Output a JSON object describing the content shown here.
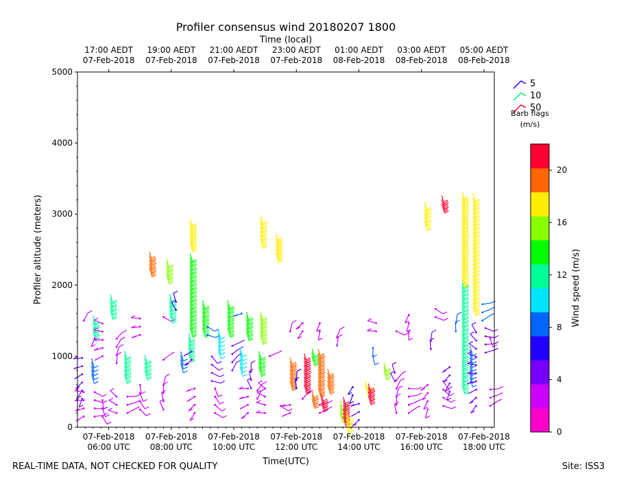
{
  "chart_data": {
    "type": "wind-barb-profile",
    "title": "Profiler consensus wind 20180207 1800",
    "top_axis_label": "Time (local)",
    "xlabel": "Time(UTC)",
    "ylabel": "Profiler altitude (meters)",
    "x_range_hours_utc": [
      5.0,
      18.33
    ],
    "ylim": [
      0,
      5000
    ],
    "y_ticks": [
      0,
      1000,
      2000,
      3000,
      4000,
      5000
    ],
    "x_ticks_utc": [
      {
        "hour": 6,
        "line1": "07-Feb-2018",
        "line2": "06:00 UTC"
      },
      {
        "hour": 8,
        "line1": "07-Feb-2018",
        "line2": "08:00 UTC"
      },
      {
        "hour": 10,
        "line1": "07-Feb-2018",
        "line2": "10:00 UTC"
      },
      {
        "hour": 12,
        "line1": "07-Feb-2018",
        "line2": "12:00 UTC"
      },
      {
        "hour": 14,
        "line1": "07-Feb-2018",
        "line2": "14:00 UTC"
      },
      {
        "hour": 16,
        "line1": "07-Feb-2018",
        "line2": "16:00 UTC"
      },
      {
        "hour": 18,
        "line1": "07-Feb-2018",
        "line2": "18:00 UTC"
      }
    ],
    "x_ticks_local": [
      {
        "hour": 6,
        "line1": "17:00 AEDT",
        "line2": "07-Feb-2018"
      },
      {
        "hour": 8,
        "line1": "19:00 AEDT",
        "line2": "07-Feb-2018"
      },
      {
        "hour": 10,
        "line1": "21:00 AEDT",
        "line2": "07-Feb-2018"
      },
      {
        "hour": 12,
        "line1": "23:00 AEDT",
        "line2": "07-Feb-2018"
      },
      {
        "hour": 14,
        "line1": "01:00 AEDT",
        "line2": "08-Feb-2018"
      },
      {
        "hour": 16,
        "line1": "03:00 AEDT",
        "line2": "08-Feb-2018"
      },
      {
        "hour": 18,
        "line1": "05:00 AEDT",
        "line2": "08-Feb-2018"
      }
    ],
    "barb_legend": {
      "title_line1": "Barb flags",
      "title_line2": "(m/s)",
      "entries": [
        {
          "label": "5",
          "color": "#2200ff"
        },
        {
          "label": "10",
          "color": "#00ee77"
        },
        {
          "label": "50",
          "color": "#ff0033"
        }
      ]
    },
    "colorbar": {
      "label": "Wind speed (m/s)",
      "range": [
        0,
        22
      ],
      "ticks": [
        0,
        4,
        8,
        12,
        16,
        20
      ],
      "colors": [
        "#ff00cc",
        "#cc00ff",
        "#7700ff",
        "#2200ff",
        "#0066ff",
        "#00e5ff",
        "#00ff99",
        "#00ff00",
        "#88ff00",
        "#ffee00",
        "#ff6600",
        "#ff0033"
      ]
    },
    "columns": [
      {
        "t": 5.05,
        "speed": 6,
        "levels": [
          [
            1100,
            1000
          ]
        ]
      },
      {
        "t": 5.15,
        "speed": 5,
        "levels": [
          [
            400,
            1050
          ]
        ]
      },
      {
        "t": 5.2,
        "speed": 2,
        "levels": [
          [
            150,
            600
          ],
          [
            1500,
            1550
          ]
        ]
      },
      {
        "t": 5.45,
        "speed": 9,
        "levels": [
          [
            750,
            1000
          ]
        ]
      },
      {
        "t": 5.5,
        "speed": 12,
        "levels": [
          [
            1350,
            1600
          ]
        ]
      },
      {
        "t": 5.55,
        "speed": 2,
        "levels": [
          [
            150,
            550
          ],
          [
            1250,
            1300
          ]
        ]
      },
      {
        "t": 5.8,
        "speed": 2,
        "levels": [
          [
            150,
            400
          ],
          [
            1000,
            1550
          ]
        ]
      },
      {
        "t": 6.05,
        "speed": 12,
        "levels": [
          [
            1650,
            1900
          ]
        ]
      },
      {
        "t": 6.25,
        "speed": 2,
        "levels": [
          [
            200,
            500
          ],
          [
            900,
            1300
          ]
        ]
      },
      {
        "t": 6.5,
        "speed": 11,
        "levels": [
          [
            750,
            1100
          ]
        ]
      },
      {
        "t": 6.6,
        "speed": 2,
        "levels": [
          [
            200,
            450
          ]
        ]
      },
      {
        "t": 7.0,
        "speed": 2,
        "levels": [
          [
            250,
            700
          ],
          [
            1300,
            1600
          ]
        ]
      },
      {
        "t": 7.15,
        "speed": 11,
        "levels": [
          [
            800,
            1050
          ]
        ]
      },
      {
        "t": 7.3,
        "speed": 19,
        "levels": [
          [
            2250,
            2500
          ]
        ]
      },
      {
        "t": 7.75,
        "speed": 2,
        "levels": [
          [
            250,
            700
          ],
          [
            950,
            1050
          ],
          [
            1550,
            1600
          ]
        ]
      },
      {
        "t": 7.85,
        "speed": 16,
        "levels": [
          [
            2150,
            2400
          ]
        ]
      },
      {
        "t": 7.95,
        "speed": 11,
        "levels": [
          [
            1600,
            1900
          ]
        ]
      },
      {
        "t": 8.15,
        "speed": 7,
        "levels": [
          [
            1650,
            1800
          ]
        ]
      },
      {
        "t": 8.3,
        "speed": 9,
        "levels": [
          [
            900,
            1100
          ]
        ]
      },
      {
        "t": 8.55,
        "speed": 11,
        "levels": [
          [
            1050,
            1350
          ]
        ]
      },
      {
        "t": 8.6,
        "speed": 18,
        "levels": [
          [
            2600,
            2950
          ]
        ]
      },
      {
        "t": 8.6,
        "speed": 14,
        "levels": [
          [
            1400,
            2450
          ]
        ]
      },
      {
        "t": 8.65,
        "speed": 4,
        "levels": [
          [
            950,
            1100
          ]
        ]
      },
      {
        "t": 8.75,
        "speed": 2,
        "levels": [
          [
            200,
            650
          ]
        ]
      },
      {
        "t": 9.0,
        "speed": 13,
        "levels": [
          [
            1400,
            1800
          ]
        ]
      },
      {
        "t": 9.15,
        "speed": 8,
        "levels": [
          [
            1300,
            1450
          ]
        ]
      },
      {
        "t": 9.3,
        "speed": 5,
        "levels": [
          [
            650,
            1100
          ]
        ]
      },
      {
        "t": 9.4,
        "speed": 3,
        "levels": [
          [
            200,
            550
          ]
        ]
      },
      {
        "t": 9.5,
        "speed": 10,
        "levels": [
          [
            1100,
            1400
          ]
        ]
      },
      {
        "t": 9.8,
        "speed": 13,
        "levels": [
          [
            1400,
            1800
          ]
        ]
      },
      {
        "t": 9.95,
        "speed": 4,
        "levels": [
          [
            800,
            1150
          ]
        ]
      },
      {
        "t": 10.2,
        "speed": 10,
        "levels": [
          [
            850,
            1150
          ]
        ]
      },
      {
        "t": 10.25,
        "speed": 8,
        "levels": [
          [
            1600,
            1700
          ]
        ]
      },
      {
        "t": 10.4,
        "speed": 13,
        "levels": [
          [
            1350,
            1650
          ]
        ]
      },
      {
        "t": 10.45,
        "speed": 2,
        "levels": [
          [
            200,
            650
          ]
        ]
      },
      {
        "t": 10.55,
        "speed": 5,
        "levels": [
          [
            550,
            800
          ]
        ]
      },
      {
        "t": 10.75,
        "speed": 3,
        "levels": [
          [
            400,
            550
          ]
        ]
      },
      {
        "t": 10.8,
        "speed": 14,
        "levels": [
          [
            850,
            1100
          ]
        ]
      },
      {
        "t": 10.85,
        "speed": 15,
        "levels": [
          [
            1300,
            1650
          ]
        ]
      },
      {
        "t": 10.85,
        "speed": 17,
        "levels": [
          [
            2650,
            3000
          ]
        ]
      },
      {
        "t": 11.0,
        "speed": 2,
        "levels": [
          [
            200,
            600
          ]
        ]
      },
      {
        "t": 11.15,
        "speed": 3,
        "levels": [
          [
            1000,
            1050
          ]
        ]
      },
      {
        "t": 11.35,
        "speed": 18,
        "levels": [
          [
            2450,
            2750
          ]
        ]
      },
      {
        "t": 11.5,
        "speed": 2,
        "levels": [
          [
            300,
            350
          ]
        ]
      },
      {
        "t": 11.8,
        "speed": 20,
        "levels": [
          [
            650,
            1000
          ]
        ]
      },
      {
        "t": 11.8,
        "speed": 2,
        "levels": [
          [
            200,
            400
          ],
          [
            1350,
            1350
          ]
        ]
      },
      {
        "t": 12.0,
        "speed": 7,
        "levels": [
          [
            550,
            700
          ]
        ]
      },
      {
        "t": 12.2,
        "speed": 3,
        "levels": [
          [
            400,
            450
          ]
        ]
      },
      {
        "t": 12.2,
        "speed": 2,
        "levels": [
          [
            1350,
            1500
          ]
        ]
      },
      {
        "t": 12.25,
        "speed": 21,
        "levels": [
          [
            600,
            1050
          ]
        ]
      },
      {
        "t": 12.5,
        "speed": 14,
        "levels": [
          [
            1000,
            1150
          ]
        ]
      },
      {
        "t": 12.5,
        "speed": 20,
        "levels": [
          [
            400,
            550
          ]
        ]
      },
      {
        "t": 12.7,
        "speed": 20,
        "levels": [
          [
            550,
            1100
          ]
        ]
      },
      {
        "t": 12.75,
        "speed": 2,
        "levels": [
          [
            200,
            400
          ],
          [
            1350,
            1500
          ]
        ]
      },
      {
        "t": 12.8,
        "speed": 21,
        "levels": [
          [
            350,
            500
          ]
        ]
      },
      {
        "t": 13.0,
        "speed": 20,
        "levels": [
          [
            600,
            850
          ]
        ]
      },
      {
        "t": 13.3,
        "speed": 2,
        "levels": [
          [
            1150,
            1350
          ]
        ]
      },
      {
        "t": 13.4,
        "speed": 15,
        "levels": [
          [
            200,
            400
          ]
        ]
      },
      {
        "t": 13.5,
        "speed": 22,
        "levels": [
          [
            150,
            450
          ]
        ]
      },
      {
        "t": 13.6,
        "speed": 17,
        "levels": [
          [
            50,
            250
          ]
        ]
      },
      {
        "t": 13.8,
        "speed": 7,
        "levels": [
          [
            450,
            650
          ]
        ]
      },
      {
        "t": 14.0,
        "speed": 5,
        "levels": [
          [
            100,
            350
          ]
        ]
      },
      {
        "t": 14.2,
        "speed": 17,
        "levels": [
          [
            600,
            700
          ]
        ]
      },
      {
        "t": 14.3,
        "speed": 21,
        "levels": [
          [
            450,
            650
          ]
        ]
      },
      {
        "t": 14.45,
        "speed": 8,
        "levels": [
          [
            1000,
            1150
          ]
        ]
      },
      {
        "t": 14.55,
        "speed": 2,
        "levels": [
          [
            1350,
            1550
          ]
        ]
      },
      {
        "t": 14.8,
        "speed": 15,
        "levels": [
          [
            800,
            950
          ]
        ]
      },
      {
        "t": 15.15,
        "speed": 5,
        "levels": [
          [
            650,
            850
          ]
        ]
      },
      {
        "t": 15.2,
        "speed": 2,
        "levels": [
          [
            200,
            700
          ],
          [
            1350,
            1450
          ]
        ]
      },
      {
        "t": 15.6,
        "speed": 2,
        "levels": [
          [
            200,
            600
          ],
          [
            1350,
            1600
          ]
        ]
      },
      {
        "t": 16.1,
        "speed": 17,
        "levels": [
          [
            2900,
            3200
          ]
        ]
      },
      {
        "t": 16.2,
        "speed": 3,
        "levels": [
          [
            250,
            650
          ]
        ]
      },
      {
        "t": 16.3,
        "speed": 4,
        "levels": [
          [
            1100,
            1250
          ]
        ]
      },
      {
        "t": 16.45,
        "speed": 2,
        "levels": [
          [
            1550,
            1700
          ]
        ]
      },
      {
        "t": 16.65,
        "speed": 21,
        "levels": [
          [
            3150,
            3300
          ]
        ]
      },
      {
        "t": 16.7,
        "speed": 2,
        "levels": [
          [
            300,
            650
          ]
        ]
      },
      {
        "t": 16.9,
        "speed": 4,
        "levels": [
          [
            500,
            850
          ]
        ]
      },
      {
        "t": 17.1,
        "speed": 8,
        "levels": [
          [
            1350,
            1500
          ]
        ]
      },
      {
        "t": 17.3,
        "speed": 12,
        "levels": [
          [
            600,
            2100
          ]
        ]
      },
      {
        "t": 17.3,
        "speed": 18,
        "levels": [
          [
            2100,
            3350
          ]
        ]
      },
      {
        "t": 17.55,
        "speed": 9,
        "levels": [
          [
            700,
            1150
          ]
        ]
      },
      {
        "t": 17.65,
        "speed": 17,
        "levels": [
          [
            1700,
            3300
          ]
        ]
      },
      {
        "t": 17.75,
        "speed": 4,
        "levels": [
          [
            300,
            1350
          ]
        ]
      },
      {
        "t": 17.95,
        "speed": 8,
        "levels": [
          [
            1500,
            1800
          ]
        ]
      },
      {
        "t": 18.05,
        "speed": 4,
        "levels": [
          [
            1050,
            1500
          ]
        ]
      },
      {
        "t": 18.2,
        "speed": 2,
        "levels": [
          [
            300,
            600
          ],
          [
            1250,
            1350
          ]
        ]
      }
    ]
  },
  "footer": {
    "disclaimer": "REAL-TIME DATA, NOT CHECKED FOR QUALITY",
    "site": "Site: ISS3"
  }
}
